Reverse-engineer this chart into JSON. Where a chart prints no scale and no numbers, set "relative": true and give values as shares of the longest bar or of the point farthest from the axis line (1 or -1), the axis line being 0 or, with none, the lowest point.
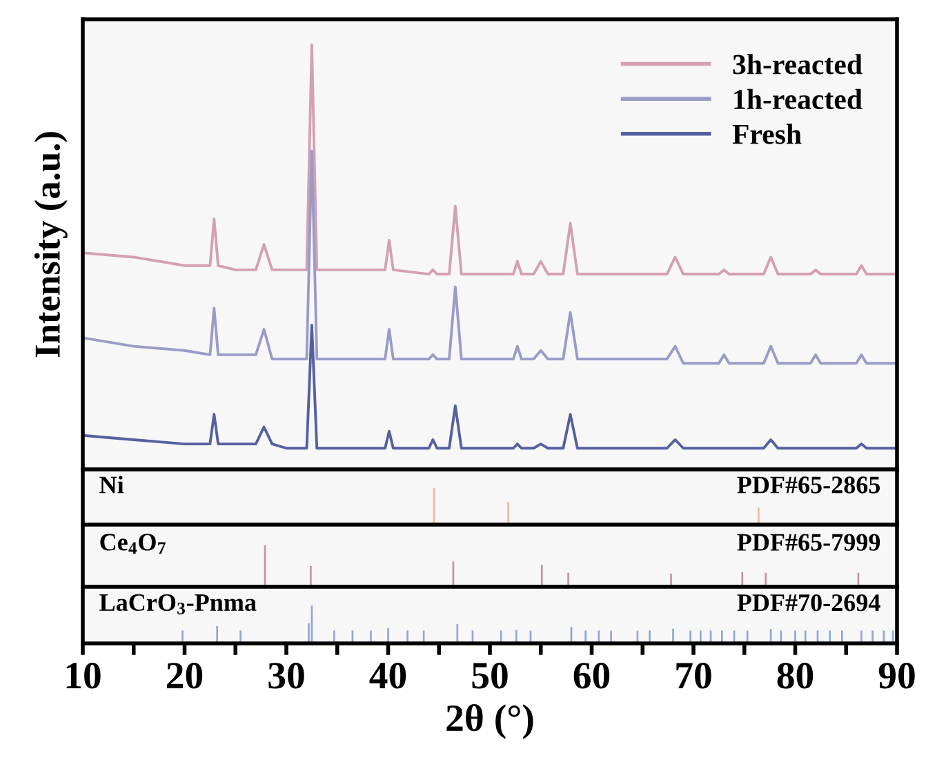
{
  "chart_data": [
    {
      "type": "line",
      "relative": true,
      "ylabel": "Intensity (a.u.)",
      "xlim": [
        10,
        90
      ],
      "tick_labels": false,
      "legend": "top right",
      "x": [
        10,
        15,
        20,
        22.5,
        22.9,
        23.3,
        25,
        27.0,
        27.8,
        28.6,
        30,
        32.0,
        32.5,
        33.0,
        35,
        39.7,
        40.1,
        40.5,
        44.0,
        44.4,
        44.8,
        46.0,
        46.6,
        47.2,
        50,
        52.3,
        52.7,
        53.1,
        54.3,
        55.0,
        55.7,
        57.2,
        57.9,
        58.6,
        62,
        67.4,
        68.2,
        69.0,
        72.5,
        73.0,
        73.5,
        76.9,
        77.6,
        78.3,
        81.5,
        82,
        82.5,
        86,
        86.5,
        87,
        90
      ],
      "series": [
        {
          "name": "3h-reacted",
          "color": "#d4a0b4",
          "values": [
            0.51,
            0.5,
            0.48,
            0.48,
            0.59,
            0.48,
            0.47,
            0.47,
            0.53,
            0.47,
            0.47,
            0.47,
            1.0,
            0.47,
            0.47,
            0.47,
            0.54,
            0.47,
            0.46,
            0.47,
            0.46,
            0.46,
            0.62,
            0.46,
            0.46,
            0.46,
            0.49,
            0.46,
            0.46,
            0.49,
            0.46,
            0.46,
            0.58,
            0.46,
            0.46,
            0.46,
            0.5,
            0.46,
            0.46,
            0.47,
            0.46,
            0.46,
            0.5,
            0.46,
            0.46,
            0.47,
            0.46,
            0.46,
            0.48,
            0.46,
            0.46
          ]
        },
        {
          "name": "1h-reacted",
          "color": "#9a9cc8",
          "values": [
            0.31,
            0.29,
            0.28,
            0.27,
            0.38,
            0.27,
            0.27,
            0.27,
            0.33,
            0.26,
            0.26,
            0.26,
            0.75,
            0.26,
            0.26,
            0.26,
            0.33,
            0.26,
            0.26,
            0.27,
            0.26,
            0.26,
            0.43,
            0.26,
            0.26,
            0.26,
            0.29,
            0.26,
            0.26,
            0.28,
            0.26,
            0.26,
            0.37,
            0.26,
            0.26,
            0.26,
            0.29,
            0.25,
            0.25,
            0.27,
            0.25,
            0.25,
            0.29,
            0.25,
            0.25,
            0.27,
            0.25,
            0.25,
            0.27,
            0.25,
            0.25
          ]
        },
        {
          "name": "Fresh",
          "color": "#5560a0",
          "values": [
            0.08,
            0.07,
            0.06,
            0.06,
            0.13,
            0.06,
            0.06,
            0.06,
            0.1,
            0.06,
            0.05,
            0.05,
            0.34,
            0.05,
            0.05,
            0.05,
            0.09,
            0.05,
            0.05,
            0.07,
            0.05,
            0.05,
            0.15,
            0.05,
            0.05,
            0.05,
            0.06,
            0.05,
            0.05,
            0.06,
            0.05,
            0.05,
            0.13,
            0.05,
            0.05,
            0.05,
            0.07,
            0.05,
            0.05,
            0.05,
            0.05,
            0.05,
            0.07,
            0.05,
            0.05,
            0.05,
            0.05,
            0.05,
            0.06,
            0.05,
            0.05
          ]
        }
      ]
    },
    {
      "type": "bar",
      "relative": true,
      "xlim": [
        10,
        90
      ],
      "tick_labels": false,
      "annotations": [
        "Ni",
        "PDF#65-2865"
      ],
      "series": [
        {
          "color": "#f0b8a0",
          "x": [
            44.5,
            51.8,
            76.4
          ],
          "values": [
            1.0,
            0.62,
            0.46
          ]
        }
      ]
    },
    {
      "type": "bar",
      "relative": true,
      "xlim": [
        10,
        90
      ],
      "tick_labels": false,
      "annotations": [
        "Ce$_{4}$O$_{7}$",
        "PDF#65-7999"
      ],
      "series": [
        {
          "color": "#c890a8",
          "x": [
            27.9,
            32.4,
            46.4,
            55.1,
            57.7,
            67.8,
            74.8,
            77.1,
            86.2
          ],
          "values": [
            1.0,
            0.5,
            0.61,
            0.53,
            0.34,
            0.32,
            0.36,
            0.34,
            0.34
          ]
        }
      ]
    },
    {
      "type": "bar",
      "relative": true,
      "xlim": [
        10,
        90
      ],
      "tick_labels": "x",
      "xlabel": "2θ (°)",
      "annotations": [
        "LaCrO$_{3}$-Pnma",
        "PDF#70-2694"
      ],
      "xticks": [
        10,
        {
          "value": 15,
          "label": null
        },
        20,
        {
          "value": 25,
          "label": null
        },
        30,
        {
          "value": 35,
          "label": null
        },
        40,
        {
          "value": 45,
          "label": null
        },
        50,
        {
          "value": 55,
          "label": null
        },
        60,
        {
          "value": 65,
          "label": null
        },
        70,
        {
          "value": 75,
          "label": null
        },
        80,
        {
          "value": 85,
          "label": null
        },
        90
      ],
      "series": [
        {
          "color": "#8fa6d6",
          "x": [
            19.8,
            23.2,
            25.5,
            32.2,
            32.5,
            34.7,
            36.5,
            38.3,
            40.0,
            41.9,
            43.5,
            46.8,
            48.3,
            51.1,
            52.6,
            54.0,
            58.0,
            59.4,
            60.7,
            61.9,
            64.5,
            65.7,
            68.0,
            69.7,
            70.7,
            71.7,
            72.8,
            74.0,
            75.3,
            77.6,
            78.6,
            80.0,
            81.0,
            82.2,
            83.4,
            84.6,
            86.5,
            87.6,
            88.7,
            89.6
          ],
          "values": [
            0.34,
            0.46,
            0.34,
            0.54,
            1.0,
            0.34,
            0.34,
            0.34,
            0.41,
            0.34,
            0.34,
            0.51,
            0.34,
            0.34,
            0.36,
            0.34,
            0.44,
            0.34,
            0.34,
            0.34,
            0.34,
            0.34,
            0.39,
            0.34,
            0.34,
            0.34,
            0.34,
            0.34,
            0.34,
            0.38,
            0.34,
            0.34,
            0.34,
            0.34,
            0.34,
            0.34,
            0.34,
            0.34,
            0.34,
            0.34
          ]
        }
      ]
    }
  ]
}
